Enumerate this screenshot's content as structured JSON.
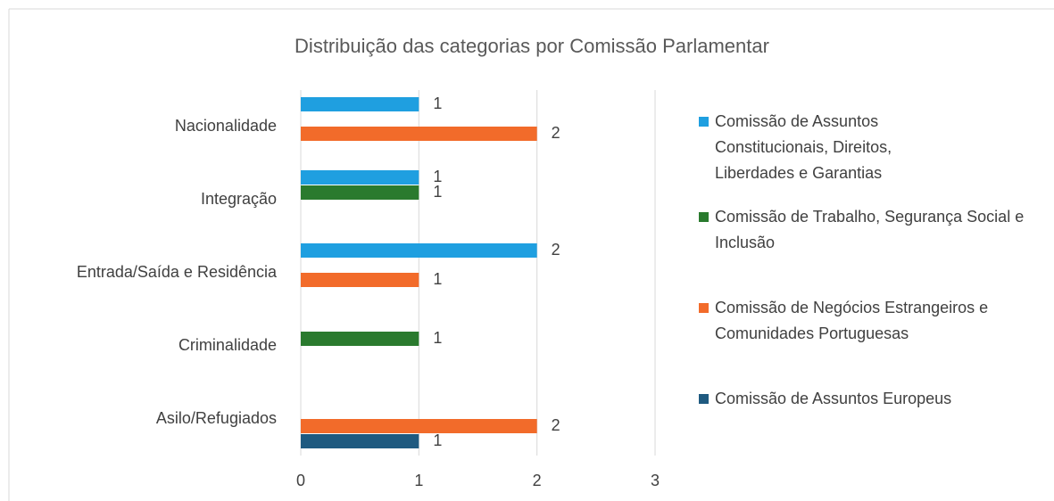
{
  "chart_data": {
    "type": "bar",
    "orientation": "horizontal",
    "title": "Distribuição das categorias por Comissão Parlamentar",
    "categories": [
      "Nacionalidade",
      "Integração",
      "Entrada/Saída e Residência",
      "Criminalidade",
      "Asilo/Refugiados"
    ],
    "series": [
      {
        "name": "Comissão de Assuntos Constitucionais, Direitos, Liberdades e Garantias",
        "color": "#1f9fe0",
        "values": [
          1,
          1,
          2,
          null,
          null
        ]
      },
      {
        "name": "Comissão de Trabalho, Segurança Social e Inclusão",
        "color": "#2a7a2e",
        "values": [
          null,
          1,
          null,
          1,
          null
        ]
      },
      {
        "name": "Comissão de Negócios Estrangeiros e Comunidades Portuguesas",
        "color": "#f26b2a",
        "values": [
          2,
          null,
          1,
          null,
          2
        ]
      },
      {
        "name": "Comissão de Assuntos Europeus",
        "color": "#1f5a80",
        "values": [
          null,
          null,
          null,
          null,
          1
        ]
      }
    ],
    "xlim": [
      0,
      3
    ],
    "xticks": [
      0,
      1,
      2,
      3
    ],
    "grid": true,
    "legend": "right"
  }
}
